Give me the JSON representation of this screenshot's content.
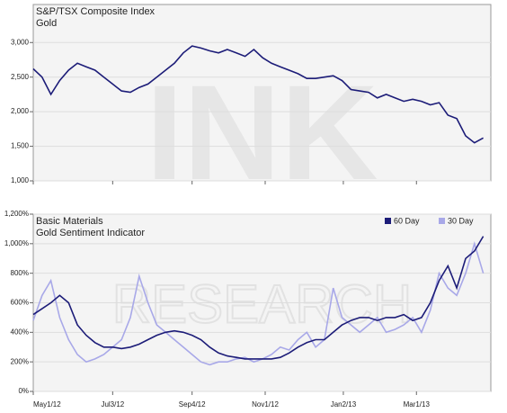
{
  "chart_data": [
    {
      "type": "line",
      "title": "S&P/TSX Composite Index",
      "subtitle": "Gold",
      "watermark": "INK",
      "color": "#1c1c78",
      "x": [
        "2012-05-01",
        "2012-05-08",
        "2012-05-15",
        "2012-05-22",
        "2012-05-29",
        "2012-06-05",
        "2012-06-12",
        "2012-06-19",
        "2012-06-26",
        "2012-07-03",
        "2012-07-10",
        "2012-07-17",
        "2012-07-24",
        "2012-07-31",
        "2012-08-07",
        "2012-08-14",
        "2012-08-21",
        "2012-08-28",
        "2012-09-04",
        "2012-09-11",
        "2012-09-18",
        "2012-09-25",
        "2012-10-02",
        "2012-10-09",
        "2012-10-16",
        "2012-10-23",
        "2012-10-30",
        "2012-11-06",
        "2012-11-13",
        "2012-11-20",
        "2012-11-27",
        "2012-12-04",
        "2012-12-11",
        "2012-12-18",
        "2012-12-25",
        "2013-01-01",
        "2013-01-08",
        "2013-01-15",
        "2013-01-22",
        "2013-01-29",
        "2013-02-05",
        "2013-02-12",
        "2013-02-19",
        "2013-02-26",
        "2013-03-05",
        "2013-03-12",
        "2013-03-19",
        "2013-03-26",
        "2013-04-02",
        "2013-04-09",
        "2013-04-16",
        "2013-04-23"
      ],
      "values": [
        2620,
        2500,
        2250,
        2450,
        2600,
        2700,
        2650,
        2600,
        2500,
        2400,
        2300,
        2280,
        2350,
        2400,
        2500,
        2600,
        2700,
        2850,
        2950,
        2920,
        2880,
        2850,
        2900,
        2850,
        2800,
        2900,
        2780,
        2700,
        2650,
        2600,
        2550,
        2480,
        2480,
        2500,
        2520,
        2450,
        2320,
        2300,
        2280,
        2200,
        2250,
        2200,
        2150,
        2180,
        2150,
        2100,
        2130,
        1950,
        1900,
        1650,
        1550,
        1620
      ],
      "xlim": [
        "2012-05-01",
        "2013-04-29"
      ],
      "ylim": [
        1000,
        3550
      ],
      "yticks": [
        {
          "value": 1000,
          "label": "1,000"
        },
        {
          "value": 1500,
          "label": "1,500"
        },
        {
          "value": 2000,
          "label": "2,000"
        },
        {
          "value": 2500,
          "label": "2,500"
        },
        {
          "value": 3000,
          "label": "3,000"
        }
      ],
      "grid": true
    },
    {
      "type": "line",
      "title": "Basic Materials",
      "subtitle": "Gold Sentiment Indicator",
      "watermark": "RESEARCH",
      "legend": "top-right",
      "x": [
        "2012-05-01",
        "2012-05-08",
        "2012-05-15",
        "2012-05-22",
        "2012-05-29",
        "2012-06-05",
        "2012-06-12",
        "2012-06-19",
        "2012-06-26",
        "2012-07-03",
        "2012-07-10",
        "2012-07-17",
        "2012-07-24",
        "2012-07-31",
        "2012-08-07",
        "2012-08-14",
        "2012-08-21",
        "2012-08-28",
        "2012-09-04",
        "2012-09-11",
        "2012-09-18",
        "2012-09-25",
        "2012-10-02",
        "2012-10-09",
        "2012-10-16",
        "2012-10-23",
        "2012-10-30",
        "2012-11-06",
        "2012-11-13",
        "2012-11-20",
        "2012-11-27",
        "2012-12-04",
        "2012-12-11",
        "2012-12-18",
        "2012-12-25",
        "2013-01-01",
        "2013-01-08",
        "2013-01-15",
        "2013-01-22",
        "2013-01-29",
        "2013-02-05",
        "2013-02-12",
        "2013-02-19",
        "2013-02-26",
        "2013-03-05",
        "2013-03-12",
        "2013-03-19",
        "2013-03-26",
        "2013-04-02",
        "2013-04-09",
        "2013-04-16",
        "2013-04-23"
      ],
      "series": [
        {
          "name": "60 Day",
          "color": "#1c1c78",
          "values": [
            520,
            560,
            600,
            650,
            600,
            450,
            380,
            330,
            300,
            300,
            290,
            300,
            320,
            350,
            380,
            400,
            410,
            400,
            380,
            350,
            300,
            260,
            240,
            230,
            220,
            220,
            220,
            220,
            230,
            260,
            300,
            330,
            350,
            350,
            400,
            450,
            480,
            500,
            500,
            480,
            500,
            500,
            520,
            480,
            500,
            600,
            750,
            850,
            700,
            900,
            950,
            1050
          ]
        },
        {
          "name": "30 Day",
          "color": "#a8a8e8",
          "values": [
            480,
            650,
            750,
            500,
            350,
            250,
            200,
            220,
            250,
            300,
            350,
            500,
            780,
            600,
            450,
            400,
            350,
            300,
            250,
            200,
            180,
            200,
            200,
            220,
            230,
            200,
            220,
            250,
            300,
            280,
            350,
            400,
            300,
            350,
            700,
            500,
            450,
            400,
            450,
            500,
            400,
            420,
            450,
            500,
            400,
            550,
            800,
            700,
            650,
            800,
            1000,
            800
          ]
        }
      ],
      "xlim": [
        "2012-05-01",
        "2013-04-29"
      ],
      "ylim": [
        0,
        1200
      ],
      "xticks": [
        {
          "value": "2012-05-01",
          "label": "May1/12"
        },
        {
          "value": "2012-07-03",
          "label": "Jul3/12"
        },
        {
          "value": "2012-09-04",
          "label": "Sep4/12"
        },
        {
          "value": "2012-11-01",
          "label": "Nov1/12"
        },
        {
          "value": "2013-01-02",
          "label": "Jan2/13"
        },
        {
          "value": "2013-03-01",
          "label": "Mar1/13"
        }
      ],
      "yticks": [
        {
          "value": 0,
          "label": "0%"
        },
        {
          "value": 200,
          "label": "200%"
        },
        {
          "value": 400,
          "label": "400%"
        },
        {
          "value": 600,
          "label": "600%"
        },
        {
          "value": 800,
          "label": "800%"
        },
        {
          "value": 1000,
          "label": "1,000%"
        },
        {
          "value": 1200,
          "label": "1,200%"
        }
      ],
      "grid": true
    }
  ]
}
